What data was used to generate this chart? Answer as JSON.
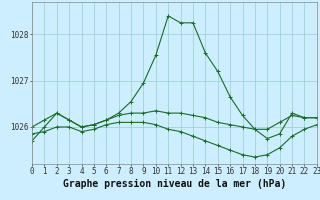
{
  "xlabel": "Graphe pression niveau de la mer (hPa)",
  "background_color": "#cceeff",
  "grid_color": "#99cccc",
  "line_color": "#1a6b2a",
  "hours": [
    0,
    1,
    2,
    3,
    4,
    5,
    6,
    7,
    8,
    9,
    10,
    11,
    12,
    13,
    14,
    15,
    16,
    17,
    18,
    19,
    20,
    21,
    22,
    23
  ],
  "series": [
    [
      1025.7,
      1026.0,
      1026.3,
      1026.15,
      1026.0,
      1026.05,
      1026.15,
      1026.3,
      1026.55,
      1026.95,
      1027.55,
      1028.4,
      1028.25,
      1028.25,
      1027.6,
      1027.2,
      1026.65,
      1026.25,
      1025.95,
      1025.75,
      1025.85,
      1026.3,
      1026.2,
      1026.2
    ],
    [
      1026.0,
      1026.15,
      1026.3,
      1026.15,
      1026.0,
      1026.05,
      1026.15,
      1026.25,
      1026.3,
      1026.3,
      1026.35,
      1026.3,
      1026.3,
      1026.25,
      1026.2,
      1026.1,
      1026.05,
      1026.0,
      1025.95,
      1025.95,
      1026.1,
      1026.25,
      1026.2,
      1026.2
    ],
    [
      1025.85,
      1025.9,
      1026.0,
      1026.0,
      1025.9,
      1025.95,
      1026.05,
      1026.1,
      1026.1,
      1026.1,
      1026.05,
      1025.95,
      1025.9,
      1025.8,
      1025.7,
      1025.6,
      1025.5,
      1025.4,
      1025.35,
      1025.4,
      1025.55,
      1025.8,
      1025.95,
      1026.05
    ]
  ],
  "ylim": [
    1025.2,
    1028.7
  ],
  "yticks": [
    1026,
    1027,
    1028
  ],
  "xticks": [
    0,
    1,
    2,
    3,
    4,
    5,
    6,
    7,
    8,
    9,
    10,
    11,
    12,
    13,
    14,
    15,
    16,
    17,
    18,
    19,
    20,
    21,
    22,
    23
  ],
  "marker": "+",
  "markersize": 3,
  "linewidth": 0.8,
  "xlabel_fontsize": 7,
  "tick_fontsize": 5.5
}
